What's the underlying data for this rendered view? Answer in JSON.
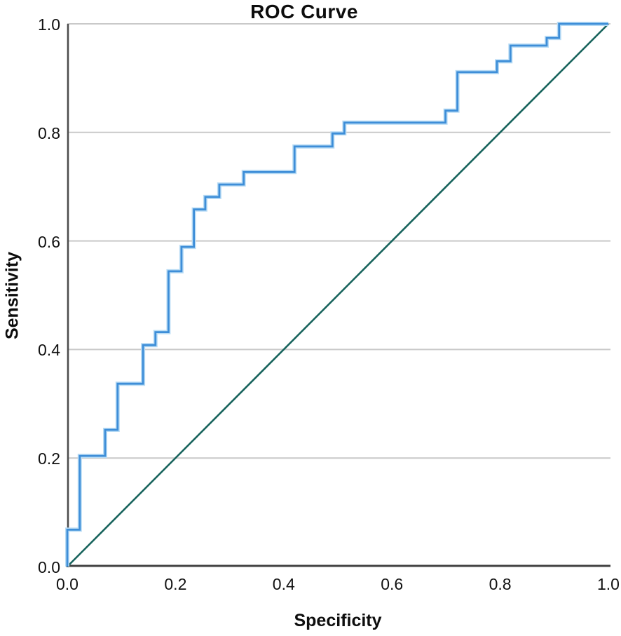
{
  "figure": {
    "title": "ROC Curve",
    "x_axis_label": "Specificity",
    "y_axis_label": "Sensitivity"
  },
  "style": {
    "curve_color": "#3e8ed8",
    "curve_halo_color": "#b9dcf5",
    "reference_line_color": "#17635c",
    "gridline_color": "#c9c9c9",
    "y_axis_color": "#4d4d4d",
    "x_axis_color": "#404040",
    "text_color": "#111111",
    "background_color": "#ffffff"
  },
  "chart_data": {
    "type": "line",
    "subtype": "roc-step-curve",
    "title": "ROC Curve",
    "xlabel": "Specificity",
    "ylabel": "Sensitivity",
    "xlim": [
      0,
      1
    ],
    "ylim": [
      0,
      1
    ],
    "x_ticks": [
      "0.0",
      "0.2",
      "0.4",
      "0.6",
      "0.8",
      "1.0"
    ],
    "y_ticks": [
      "0.0",
      "0.2",
      "0.4",
      "0.6",
      "0.8",
      "1.0"
    ],
    "x_tick_values": [
      0,
      0.2,
      0.4,
      0.6,
      0.8,
      1.0
    ],
    "y_tick_values": [
      0,
      0.2,
      0.4,
      0.6,
      0.8,
      1.0
    ],
    "grid": "horizontal-only",
    "legend": "none",
    "series": [
      {
        "name": "ROC curve",
        "draw": "step-vertices",
        "color": "#3e8ed8",
        "points": [
          [
            0.0,
            0.0
          ],
          [
            0.0,
            0.068
          ],
          [
            0.023,
            0.068
          ],
          [
            0.023,
            0.204
          ],
          [
            0.07,
            0.204
          ],
          [
            0.07,
            0.252
          ],
          [
            0.093,
            0.252
          ],
          [
            0.093,
            0.337
          ],
          [
            0.14,
            0.337
          ],
          [
            0.14,
            0.408
          ],
          [
            0.163,
            0.408
          ],
          [
            0.163,
            0.432
          ],
          [
            0.187,
            0.432
          ],
          [
            0.187,
            0.544
          ],
          [
            0.211,
            0.544
          ],
          [
            0.211,
            0.589
          ],
          [
            0.234,
            0.589
          ],
          [
            0.234,
            0.658
          ],
          [
            0.255,
            0.658
          ],
          [
            0.255,
            0.681
          ],
          [
            0.281,
            0.681
          ],
          [
            0.281,
            0.704
          ],
          [
            0.326,
            0.704
          ],
          [
            0.326,
            0.727
          ],
          [
            0.42,
            0.727
          ],
          [
            0.42,
            0.774
          ],
          [
            0.49,
            0.774
          ],
          [
            0.49,
            0.798
          ],
          [
            0.512,
            0.798
          ],
          [
            0.512,
            0.818
          ],
          [
            0.699,
            0.818
          ],
          [
            0.699,
            0.84
          ],
          [
            0.721,
            0.84
          ],
          [
            0.721,
            0.911
          ],
          [
            0.794,
            0.911
          ],
          [
            0.794,
            0.931
          ],
          [
            0.819,
            0.931
          ],
          [
            0.819,
            0.96
          ],
          [
            0.886,
            0.96
          ],
          [
            0.886,
            0.974
          ],
          [
            0.909,
            0.974
          ],
          [
            0.909,
            1.0
          ],
          [
            1.0,
            1.0
          ]
        ]
      },
      {
        "name": "Reference line",
        "draw": "straight",
        "color": "#17635c",
        "points": [
          [
            0,
            0
          ],
          [
            1,
            1
          ]
        ]
      }
    ]
  }
}
